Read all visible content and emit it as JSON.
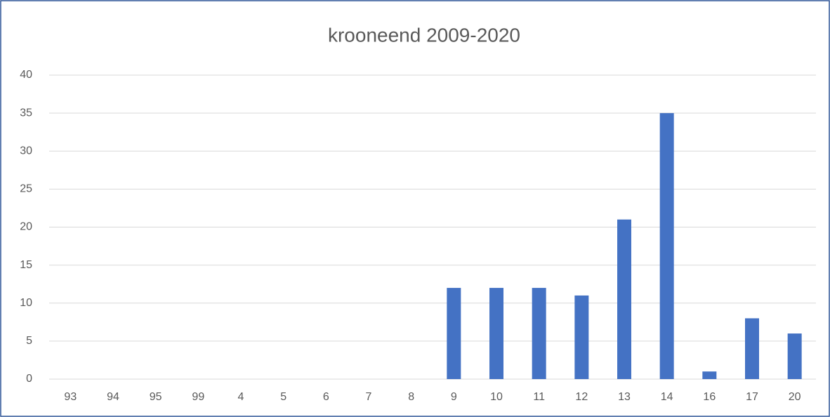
{
  "chart_data": {
    "type": "bar",
    "title": "krooneend 2009-2020",
    "categories": [
      "93",
      "94",
      "95",
      "99",
      "4",
      "5",
      "6",
      "7",
      "8",
      "9",
      "10",
      "11",
      "12",
      "13",
      "14",
      "16",
      "17",
      "20"
    ],
    "values": [
      0,
      0,
      0,
      0,
      0,
      0,
      0,
      0,
      0,
      12,
      12,
      12,
      11,
      21,
      35,
      1,
      8,
      6
    ],
    "color": "#4472c4",
    "ylim": [
      0,
      40
    ],
    "yticks": [
      0,
      5,
      10,
      15,
      20,
      25,
      30,
      35,
      40
    ],
    "grid": true
  }
}
